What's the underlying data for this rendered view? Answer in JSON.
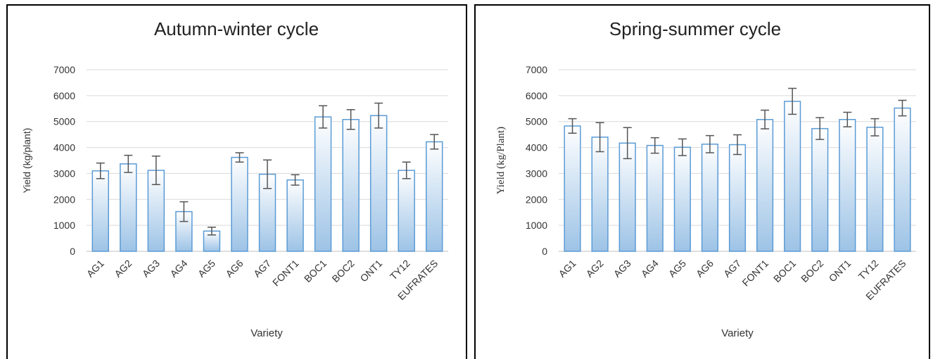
{
  "chart_data": [
    {
      "type": "bar",
      "title": "Autumn-winter cycle",
      "xlabel": "Variety",
      "ylabel": "Yield (kg/plant)",
      "ylim": [
        0,
        7000
      ],
      "yticks": [
        "0",
        "1000",
        "2000",
        "3000",
        "4000",
        "5000",
        "6000",
        "7000"
      ],
      "categories": [
        "AG1",
        "AG2",
        "AG3",
        "AG4",
        "AG5",
        "AG6",
        "AG7",
        "FONT1",
        "BOC1",
        "BOC2",
        "ONT1",
        "TY12",
        "EUFRATES"
      ],
      "values": [
        3100,
        3370,
        3120,
        1530,
        780,
        3620,
        2970,
        2750,
        5180,
        5080,
        5230,
        3120,
        4220
      ],
      "errors": [
        300,
        330,
        550,
        380,
        150,
        180,
        550,
        200,
        430,
        380,
        480,
        320,
        280
      ],
      "grid": true,
      "legend": "none"
    },
    {
      "type": "bar",
      "title": "Spring-summer cycle",
      "xlabel": "Variety",
      "ylabel": "Yield (kg/Plant)",
      "ylim": [
        0,
        7000
      ],
      "yticks": [
        "0",
        "1000",
        "2000",
        "3000",
        "4000",
        "5000",
        "6000",
        "7000"
      ],
      "categories": [
        "AG1",
        "AG2",
        "AG3",
        "AG4",
        "AG5",
        "AG6",
        "AG7",
        "FONT1",
        "BOC1",
        "BOC2",
        "ONT1",
        "TY12",
        "EUFRATES"
      ],
      "values": [
        4830,
        4400,
        4170,
        4080,
        4010,
        4130,
        4110,
        5080,
        5780,
        4730,
        5080,
        4780,
        5520
      ],
      "errors": [
        280,
        560,
        600,
        300,
        320,
        330,
        380,
        360,
        500,
        420,
        280,
        330,
        300
      ],
      "grid": true,
      "legend": "none"
    }
  ],
  "colors": {
    "bar_fill_top": "#ffffff",
    "bar_fill_bottom": "#9dc3e6",
    "bar_stroke": "#5b9bd5",
    "gridline": "#d9d9d9"
  }
}
